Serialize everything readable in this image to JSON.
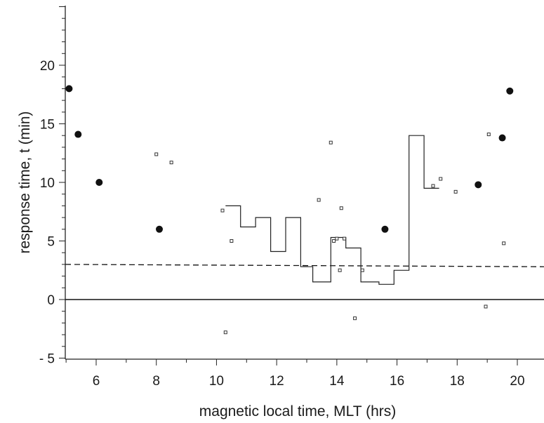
{
  "chart_data": {
    "type": "scatter",
    "title": "",
    "xlabel": "magnetic local time, MLT  (hrs)",
    "ylabel": "response time, t   (min)",
    "xlim": [
      5,
      21
    ],
    "ylim": [
      -5.5,
      25
    ],
    "x_ticks": [
      6,
      8,
      10,
      12,
      14,
      16,
      18,
      20
    ],
    "x_tick_labels": [
      "6",
      "8",
      "10",
      "12",
      "14",
      "16",
      "18",
      "20"
    ],
    "y_ticks": [
      -5,
      0,
      5,
      10,
      15,
      20
    ],
    "y_tick_labels": [
      "- 5",
      "0",
      "5",
      "10",
      "15",
      "20"
    ],
    "grid": false,
    "legend": "none",
    "series": [
      {
        "marker": "filled-circle",
        "x": [
          5.1,
          5.4,
          6.1,
          8.1,
          15.6,
          18.7,
          19.5,
          19.75
        ],
        "y": [
          18.0,
          14.1,
          10.0,
          6.0,
          6.0,
          9.8,
          13.8,
          17.8
        ]
      },
      {
        "marker": "small-open-square",
        "x": [
          8.0,
          8.5,
          10.2,
          10.3,
          10.5,
          13.4,
          13.8,
          13.9,
          14.0,
          14.1,
          14.15,
          14.25,
          14.6,
          14.85,
          17.2,
          17.45,
          17.95,
          18.95,
          19.05,
          19.55
        ],
        "y": [
          12.4,
          11.7,
          7.6,
          -2.8,
          5.0,
          8.5,
          13.4,
          5.0,
          5.2,
          2.5,
          7.8,
          5.2,
          -1.6,
          2.5,
          9.7,
          10.3,
          9.2,
          -0.6,
          14.1,
          4.8
        ]
      },
      {
        "style": "step",
        "x": [
          10.3,
          10.8,
          11.3,
          11.8,
          12.3,
          12.8,
          13.2,
          13.8,
          14.3,
          14.8,
          15.4,
          15.9,
          16.4,
          16.9,
          17.4
        ],
        "y": [
          8.0,
          6.2,
          7.0,
          4.1,
          7.0,
          2.8,
          1.5,
          5.3,
          4.4,
          1.5,
          1.3,
          2.5,
          14.0,
          9.5,
          9.5
        ]
      },
      {
        "style": "dashed",
        "x": [
          5,
          21
        ],
        "y": [
          3.0,
          2.8
        ]
      }
    ]
  }
}
